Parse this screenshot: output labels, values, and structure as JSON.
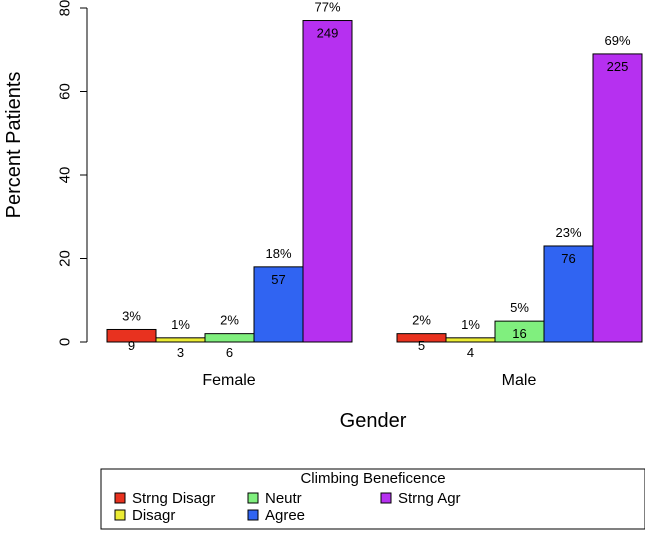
{
  "chart_data": {
    "type": "bar",
    "title": "",
    "xlabel": "Gender",
    "ylabel": "Percent Patients",
    "ylim": [
      0,
      80
    ],
    "yticks": [
      "0",
      "20",
      "40",
      "60",
      "80"
    ],
    "grid": false,
    "categories": [
      "Female",
      "Male"
    ],
    "series": [
      {
        "name": "Strng Disagr",
        "color": "#e8321f",
        "values": [
          3,
          2
        ],
        "pct_labels": [
          "3%",
          "2%"
        ],
        "count_labels": [
          "9",
          "5"
        ]
      },
      {
        "name": "Disagr",
        "color": "#ecec34",
        "values": [
          1,
          1
        ],
        "pct_labels": [
          "1%",
          "1%"
        ],
        "count_labels": [
          "3",
          "4"
        ]
      },
      {
        "name": "Neutr",
        "color": "#80ef7e",
        "values": [
          2,
          5
        ],
        "pct_labels": [
          "2%",
          "5%"
        ],
        "count_labels": [
          "6",
          "16"
        ]
      },
      {
        "name": "Agree",
        "color": "#3064f2",
        "values": [
          18,
          23
        ],
        "pct_labels": [
          "18%",
          "23%"
        ],
        "count_labels": [
          "57",
          "76"
        ]
      },
      {
        "name": "Strng Agr",
        "color": "#b630f0",
        "values": [
          77,
          69
        ],
        "pct_labels": [
          "77%",
          "69%"
        ],
        "count_labels": [
          "249",
          "225"
        ]
      }
    ],
    "legend": {
      "title": "Climbing Beneficence",
      "placement": "bottom"
    }
  }
}
